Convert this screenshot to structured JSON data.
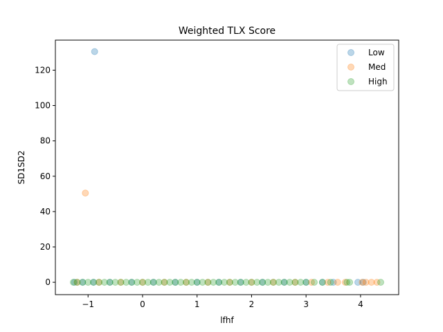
{
  "chart_data": {
    "type": "scatter",
    "title": "Weighted TLX Score",
    "xlabel": "lfhf",
    "ylabel": "SD1SD2",
    "xlim": [
      -1.6,
      4.7
    ],
    "ylim": [
      -7,
      137
    ],
    "xticks": [
      -1,
      0,
      1,
      2,
      3,
      4
    ],
    "yticks": [
      0,
      20,
      40,
      60,
      80,
      100,
      120
    ],
    "xtick_labels": [
      "−1",
      "0",
      "1",
      "2",
      "3",
      "4"
    ],
    "ytick_labels": [
      "0",
      "20",
      "40",
      "60",
      "80",
      "100",
      "120"
    ],
    "grid": false,
    "legend_position": "top-right",
    "series": [
      {
        "name": "Low",
        "color": "#1f77b4",
        "points": [
          [
            -0.88,
            130.5
          ],
          [
            -1.25,
            0
          ],
          [
            -1.1,
            0
          ],
          [
            -0.9,
            0
          ],
          [
            -0.6,
            0
          ],
          [
            -0.2,
            0
          ],
          [
            0.2,
            0
          ],
          [
            0.6,
            0
          ],
          [
            1.0,
            0
          ],
          [
            1.4,
            0
          ],
          [
            1.8,
            0
          ],
          [
            2.2,
            0
          ],
          [
            2.6,
            0
          ],
          [
            3.0,
            0
          ],
          [
            3.3,
            0
          ],
          [
            3.5,
            0
          ],
          [
            3.95,
            0
          ],
          [
            4.05,
            0
          ]
        ]
      },
      {
        "name": "Med",
        "color": "#ff7f0e",
        "points": [
          [
            -1.05,
            50.5
          ],
          [
            -1.2,
            0
          ],
          [
            -0.8,
            0
          ],
          [
            -0.4,
            0
          ],
          [
            0.0,
            0
          ],
          [
            0.4,
            0
          ],
          [
            0.8,
            0
          ],
          [
            1.2,
            0
          ],
          [
            1.6,
            0
          ],
          [
            2.0,
            0
          ],
          [
            2.4,
            0
          ],
          [
            2.8,
            0
          ],
          [
            3.1,
            0
          ],
          [
            3.4,
            0
          ],
          [
            3.58,
            0
          ],
          [
            3.72,
            0
          ],
          [
            4.03,
            0
          ],
          [
            4.1,
            0
          ],
          [
            4.2,
            0
          ],
          [
            4.3,
            0
          ]
        ]
      },
      {
        "name": "High",
        "color": "#2ca02c",
        "points": [
          [
            -1.27,
            0
          ],
          [
            -1.2,
            0
          ],
          [
            -1.1,
            0
          ],
          [
            -1.0,
            0
          ],
          [
            -0.9,
            0
          ],
          [
            -0.8,
            0
          ],
          [
            -0.7,
            0
          ],
          [
            -0.6,
            0
          ],
          [
            -0.5,
            0
          ],
          [
            -0.4,
            0
          ],
          [
            -0.3,
            0
          ],
          [
            -0.2,
            0
          ],
          [
            -0.1,
            0
          ],
          [
            0.0,
            0
          ],
          [
            0.1,
            0
          ],
          [
            0.2,
            0
          ],
          [
            0.3,
            0
          ],
          [
            0.4,
            0
          ],
          [
            0.5,
            0
          ],
          [
            0.6,
            0
          ],
          [
            0.7,
            0
          ],
          [
            0.8,
            0
          ],
          [
            0.9,
            0
          ],
          [
            1.0,
            0
          ],
          [
            1.1,
            0
          ],
          [
            1.2,
            0
          ],
          [
            1.3,
            0
          ],
          [
            1.4,
            0
          ],
          [
            1.5,
            0
          ],
          [
            1.6,
            0
          ],
          [
            1.7,
            0
          ],
          [
            1.8,
            0
          ],
          [
            1.9,
            0
          ],
          [
            2.0,
            0
          ],
          [
            2.1,
            0
          ],
          [
            2.2,
            0
          ],
          [
            2.3,
            0
          ],
          [
            2.4,
            0
          ],
          [
            2.5,
            0
          ],
          [
            2.6,
            0
          ],
          [
            2.7,
            0
          ],
          [
            2.8,
            0
          ],
          [
            2.9,
            0
          ],
          [
            3.0,
            0
          ],
          [
            3.15,
            0
          ],
          [
            3.3,
            0
          ],
          [
            3.45,
            0
          ],
          [
            3.75,
            0
          ],
          [
            3.8,
            0
          ],
          [
            4.37,
            0
          ]
        ]
      }
    ]
  }
}
